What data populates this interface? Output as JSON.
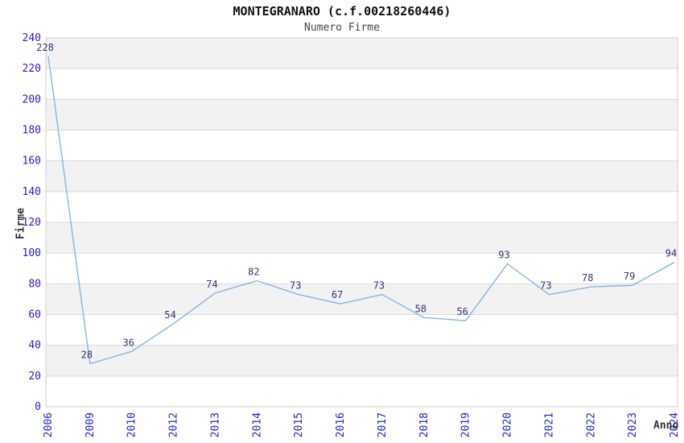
{
  "header": {
    "title": "MONTEGRANARO (c.f.00218260446)",
    "subtitle": "Numero Firme"
  },
  "chart_data": {
    "type": "line",
    "title": "MONTEGRANARO (c.f.00218260446)",
    "subtitle": "Numero Firme",
    "xlabel": "Anno",
    "ylabel": "Firme",
    "categories": [
      "2006",
      "2009",
      "2010",
      "2012",
      "2013",
      "2014",
      "2015",
      "2016",
      "2017",
      "2018",
      "2019",
      "2020",
      "2021",
      "2022",
      "2023",
      "2024"
    ],
    "values": [
      228,
      28,
      36,
      54,
      74,
      82,
      73,
      67,
      73,
      58,
      56,
      93,
      73,
      78,
      79,
      94
    ],
    "ylim": [
      0,
      240
    ],
    "ytick_step": 20,
    "yticks": [
      0,
      20,
      40,
      60,
      80,
      100,
      120,
      140,
      160,
      180,
      200,
      220,
      240
    ],
    "grid": true,
    "band_shading": true,
    "data_labels": true,
    "legend": "none",
    "x_tick_rotation_deg": 90,
    "colors": {
      "line": "#86b4e4",
      "tick_label": "#2222cc",
      "data_label": "#333377",
      "band": "#f2f2f2",
      "grid": "#d9d9d9",
      "plot_border": "#cccccc",
      "title": "#111111",
      "subtitle": "#444444",
      "axis_title": "#333333",
      "background": "#ffffff"
    }
  }
}
